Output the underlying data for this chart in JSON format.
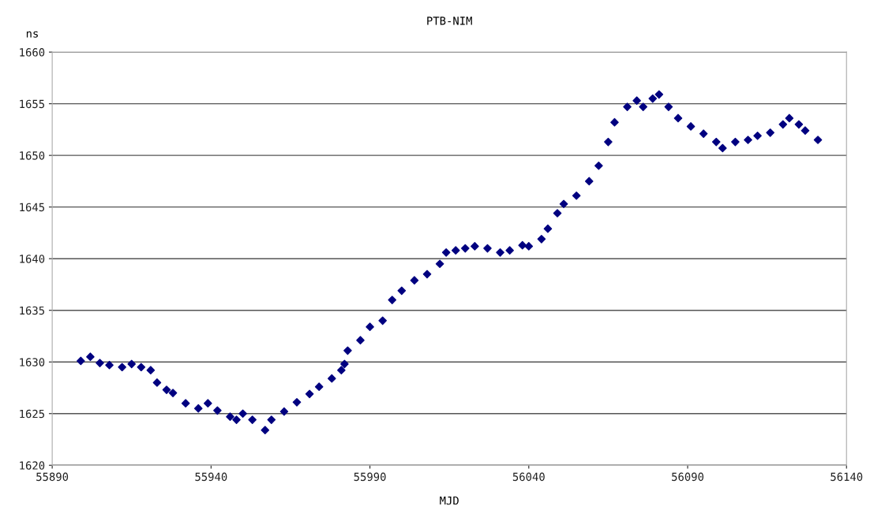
{
  "chart_data": {
    "type": "scatter",
    "title": "PTB-NIM",
    "xlabel": "MJD",
    "ylabel": "ns",
    "xlim": [
      55890,
      56140
    ],
    "xticks": [
      55890,
      55940,
      55990,
      56040,
      56090,
      56140
    ],
    "ylim": [
      1620,
      1660
    ],
    "yticks": [
      1620,
      1625,
      1630,
      1635,
      1640,
      1645,
      1650,
      1655,
      1660
    ],
    "grid": "y",
    "marker": "diamond",
    "series": [
      {
        "color": "#000080",
        "x": [
          55899,
          55902,
          55905,
          55908,
          55912,
          55915,
          55918,
          55921,
          55923,
          55926,
          55928,
          55932,
          55936,
          55939,
          55942,
          55946,
          55948,
          55950,
          55953,
          55957,
          55959,
          55963,
          55967,
          55971,
          55974,
          55978,
          55981,
          55982,
          55983,
          55987,
          55990,
          55994,
          55997,
          56000,
          56004,
          56008,
          56012,
          56014,
          56017,
          56020,
          56023,
          56027,
          56031,
          56034,
          56038,
          56040,
          56044,
          56046,
          56049,
          56051,
          56055,
          56059,
          56062,
          56065,
          56067,
          56071,
          56074,
          56076,
          56079,
          56081,
          56084,
          56087,
          56091,
          56095,
          56099,
          56101,
          56105,
          56109,
          56112,
          56116,
          56120,
          56122,
          56125,
          56127,
          56131
        ],
        "values": [
          1630.1,
          1630.5,
          1629.9,
          1629.7,
          1629.5,
          1629.8,
          1629.5,
          1629.2,
          1628.0,
          1627.3,
          1627.0,
          1626.0,
          1625.5,
          1626.0,
          1625.3,
          1624.7,
          1624.4,
          1625.0,
          1624.4,
          1623.4,
          1624.4,
          1625.2,
          1626.1,
          1626.9,
          1627.6,
          1628.4,
          1629.2,
          1629.8,
          1631.1,
          1632.1,
          1633.4,
          1634.0,
          1636.0,
          1636.9,
          1637.9,
          1638.5,
          1639.5,
          1640.6,
          1640.8,
          1641.0,
          1641.2,
          1641.0,
          1640.6,
          1640.8,
          1641.3,
          1641.2,
          1641.9,
          1642.9,
          1644.4,
          1645.3,
          1646.1,
          1647.5,
          1649.0,
          1651.3,
          1653.2,
          1654.7,
          1655.3,
          1654.7,
          1655.5,
          1655.9,
          1654.7,
          1653.6,
          1652.8,
          1652.1,
          1651.3,
          1650.7,
          1651.3,
          1651.5,
          1651.9,
          1652.2,
          1653.0,
          1653.6,
          1653.0,
          1652.4,
          1651.5
        ]
      }
    ]
  }
}
